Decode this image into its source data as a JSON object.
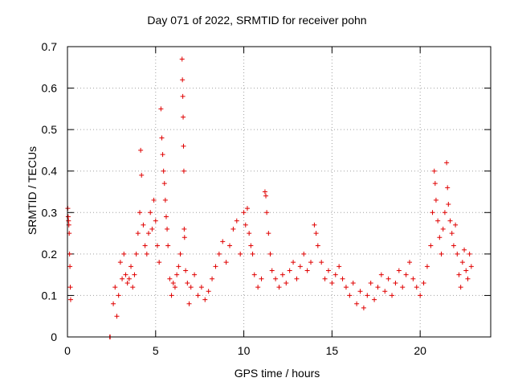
{
  "chart_data": {
    "type": "scatter",
    "title": "Day 071 of 2022, SRMTID for receiver pohn",
    "xlabel": "GPS time / hours",
    "ylabel": "SRMTID / TECUs",
    "xlim": [
      0,
      24
    ],
    "ylim": [
      0,
      0.7
    ],
    "xticks": [
      0,
      5,
      10,
      15,
      20
    ],
    "yticks": [
      0,
      0.1,
      0.2,
      0.3,
      0.4,
      0.5,
      0.6,
      0.7
    ],
    "xtick_labels": [
      "0",
      "5",
      "10",
      "15",
      "20"
    ],
    "ytick_labels": [
      "0",
      "0.1",
      "0.2",
      "0.3",
      "0.4",
      "0.5",
      "0.6",
      "0.7"
    ],
    "grid": true,
    "marker": "+",
    "color": "#e00000",
    "series": [
      {
        "name": "SRMTID",
        "points": [
          [
            0.02,
            0.31
          ],
          [
            0.04,
            0.29
          ],
          [
            0.06,
            0.28
          ],
          [
            0.08,
            0.27
          ],
          [
            0.1,
            0.25
          ],
          [
            0.12,
            0.2
          ],
          [
            0.14,
            0.17
          ],
          [
            0.16,
            0.12
          ],
          [
            0.18,
            0.09
          ],
          [
            2.4,
            0.0
          ],
          [
            2.42,
            0.0
          ],
          [
            2.6,
            0.08
          ],
          [
            2.7,
            0.12
          ],
          [
            2.8,
            0.05
          ],
          [
            2.9,
            0.1
          ],
          [
            3.0,
            0.18
          ],
          [
            3.1,
            0.14
          ],
          [
            3.2,
            0.2
          ],
          [
            3.3,
            0.15
          ],
          [
            3.4,
            0.13
          ],
          [
            3.5,
            0.14
          ],
          [
            3.6,
            0.17
          ],
          [
            3.7,
            0.12
          ],
          [
            3.8,
            0.15
          ],
          [
            3.9,
            0.2
          ],
          [
            4.0,
            0.25
          ],
          [
            4.1,
            0.3
          ],
          [
            4.15,
            0.45
          ],
          [
            4.2,
            0.39
          ],
          [
            4.3,
            0.27
          ],
          [
            4.4,
            0.22
          ],
          [
            4.5,
            0.2
          ],
          [
            4.6,
            0.25
          ],
          [
            4.7,
            0.3
          ],
          [
            4.8,
            0.26
          ],
          [
            4.9,
            0.33
          ],
          [
            5.0,
            0.28
          ],
          [
            5.1,
            0.22
          ],
          [
            5.2,
            0.18
          ],
          [
            5.3,
            0.55
          ],
          [
            5.35,
            0.48
          ],
          [
            5.4,
            0.44
          ],
          [
            5.45,
            0.4
          ],
          [
            5.5,
            0.37
          ],
          [
            5.55,
            0.33
          ],
          [
            5.6,
            0.29
          ],
          [
            5.65,
            0.26
          ],
          [
            5.7,
            0.22
          ],
          [
            5.8,
            0.14
          ],
          [
            5.9,
            0.1
          ],
          [
            6.0,
            0.13
          ],
          [
            6.1,
            0.12
          ],
          [
            6.2,
            0.15
          ],
          [
            6.3,
            0.17
          ],
          [
            6.4,
            0.2
          ],
          [
            6.5,
            0.67
          ],
          [
            6.52,
            0.62
          ],
          [
            6.54,
            0.58
          ],
          [
            6.56,
            0.53
          ],
          [
            6.58,
            0.46
          ],
          [
            6.6,
            0.4
          ],
          [
            6.62,
            0.26
          ],
          [
            6.64,
            0.24
          ],
          [
            6.7,
            0.16
          ],
          [
            6.8,
            0.13
          ],
          [
            6.9,
            0.08
          ],
          [
            7.0,
            0.12
          ],
          [
            7.2,
            0.15
          ],
          [
            7.4,
            0.1
          ],
          [
            7.6,
            0.12
          ],
          [
            7.8,
            0.09
          ],
          [
            8.0,
            0.11
          ],
          [
            8.2,
            0.14
          ],
          [
            8.4,
            0.17
          ],
          [
            8.6,
            0.2
          ],
          [
            8.8,
            0.23
          ],
          [
            9.0,
            0.18
          ],
          [
            9.2,
            0.22
          ],
          [
            9.4,
            0.26
          ],
          [
            9.6,
            0.28
          ],
          [
            9.8,
            0.2
          ],
          [
            10.0,
            0.3
          ],
          [
            10.1,
            0.27
          ],
          [
            10.2,
            0.31
          ],
          [
            10.3,
            0.25
          ],
          [
            10.4,
            0.22
          ],
          [
            10.5,
            0.2
          ],
          [
            10.6,
            0.15
          ],
          [
            10.8,
            0.12
          ],
          [
            11.0,
            0.14
          ],
          [
            11.2,
            0.35
          ],
          [
            11.25,
            0.34
          ],
          [
            11.3,
            0.3
          ],
          [
            11.4,
            0.25
          ],
          [
            11.5,
            0.2
          ],
          [
            11.6,
            0.16
          ],
          [
            11.8,
            0.14
          ],
          [
            12.0,
            0.12
          ],
          [
            12.2,
            0.15
          ],
          [
            12.4,
            0.13
          ],
          [
            12.6,
            0.16
          ],
          [
            12.8,
            0.18
          ],
          [
            13.0,
            0.14
          ],
          [
            13.2,
            0.17
          ],
          [
            13.4,
            0.2
          ],
          [
            13.6,
            0.16
          ],
          [
            13.8,
            0.18
          ],
          [
            14.0,
            0.27
          ],
          [
            14.1,
            0.25
          ],
          [
            14.2,
            0.22
          ],
          [
            14.4,
            0.18
          ],
          [
            14.6,
            0.14
          ],
          [
            14.8,
            0.16
          ],
          [
            15.0,
            0.13
          ],
          [
            15.2,
            0.15
          ],
          [
            15.4,
            0.17
          ],
          [
            15.6,
            0.14
          ],
          [
            15.8,
            0.12
          ],
          [
            16.0,
            0.1
          ],
          [
            16.2,
            0.13
          ],
          [
            16.4,
            0.08
          ],
          [
            16.6,
            0.11
          ],
          [
            16.8,
            0.07
          ],
          [
            17.0,
            0.1
          ],
          [
            17.2,
            0.13
          ],
          [
            17.4,
            0.09
          ],
          [
            17.6,
            0.12
          ],
          [
            17.8,
            0.15
          ],
          [
            18.0,
            0.11
          ],
          [
            18.2,
            0.14
          ],
          [
            18.4,
            0.1
          ],
          [
            18.6,
            0.13
          ],
          [
            18.8,
            0.16
          ],
          [
            19.0,
            0.12
          ],
          [
            19.2,
            0.15
          ],
          [
            19.4,
            0.18
          ],
          [
            19.6,
            0.14
          ],
          [
            19.8,
            0.12
          ],
          [
            20.0,
            0.1
          ],
          [
            20.2,
            0.13
          ],
          [
            20.4,
            0.17
          ],
          [
            20.6,
            0.22
          ],
          [
            20.7,
            0.3
          ],
          [
            20.8,
            0.4
          ],
          [
            20.85,
            0.37
          ],
          [
            20.9,
            0.33
          ],
          [
            21.0,
            0.28
          ],
          [
            21.1,
            0.24
          ],
          [
            21.2,
            0.2
          ],
          [
            21.3,
            0.26
          ],
          [
            21.4,
            0.3
          ],
          [
            21.5,
            0.42
          ],
          [
            21.55,
            0.36
          ],
          [
            21.6,
            0.32
          ],
          [
            21.7,
            0.28
          ],
          [
            21.8,
            0.25
          ],
          [
            21.9,
            0.22
          ],
          [
            22.0,
            0.27
          ],
          [
            22.1,
            0.2
          ],
          [
            22.2,
            0.15
          ],
          [
            22.3,
            0.12
          ],
          [
            22.4,
            0.18
          ],
          [
            22.5,
            0.21
          ],
          [
            22.6,
            0.16
          ],
          [
            22.7,
            0.14
          ],
          [
            22.8,
            0.2
          ],
          [
            22.9,
            0.17
          ]
        ]
      }
    ]
  }
}
